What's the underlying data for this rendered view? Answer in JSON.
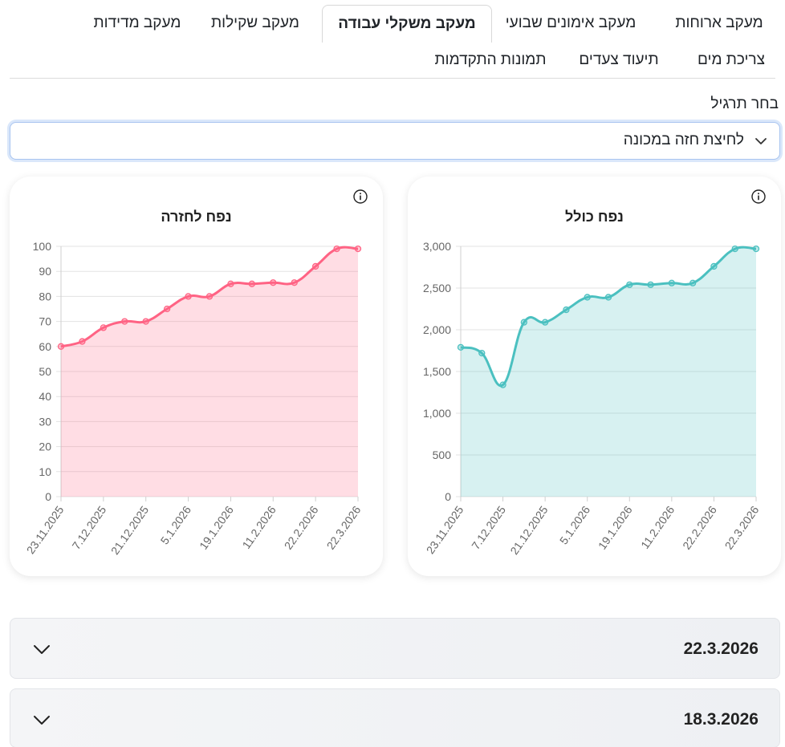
{
  "tabs": {
    "row1": [
      "מעקב ארוחות",
      "מעקב אימונים שבועי",
      "מעקב משקלי עבודה",
      "מעקב שקילות",
      "מעקב מדידות"
    ],
    "row2": [
      "צריכת מים",
      "תיעוד צעדים",
      "תמונות התקדמות"
    ],
    "active": "מעקב משקלי עבודה"
  },
  "exercise_select": {
    "label": "בחר תרגיל",
    "value": "לחיצת חזה במכונה"
  },
  "accordion": [
    "22.3.2026",
    "18.3.2026"
  ],
  "colors": {
    "teal": "#4bc0c0",
    "pink": "#ff6384",
    "accent_border": "#a8c4f0"
  },
  "chart_data": [
    {
      "type": "area",
      "title": "נפח כולל",
      "x": [
        "23.11.2025",
        "30.11.2025",
        "7.12.2025",
        "14.12.2025",
        "21.12.2025",
        "28.12.2025",
        "5.1.2026",
        "12.1.2026",
        "19.1.2026",
        "4.2.2026",
        "11.2.2026",
        "18.2.2026",
        "22.2.2026",
        "15.3.2026",
        "22.3.2026"
      ],
      "x_tick_labels": [
        "23.11.2025",
        "7.12.2025",
        "21.12.2025",
        "5.1.2026",
        "19.1.2026",
        "11.2.2026",
        "22.2.2026",
        "22.3.2026"
      ],
      "values": [
        1790,
        1720,
        1340,
        2090,
        2090,
        2240,
        2390,
        2390,
        2540,
        2540,
        2560,
        2560,
        2760,
        2970,
        2970
      ],
      "ylim": [
        0,
        3000
      ],
      "yticks": [
        "0",
        "500",
        "1,000",
        "1,500",
        "2,000",
        "2,500",
        "3,000"
      ],
      "grid": true,
      "color": "#4bc0c0"
    },
    {
      "type": "area",
      "title": "נפח לחזרה",
      "x": [
        "23.11.2025",
        "30.11.2025",
        "7.12.2025",
        "14.12.2025",
        "21.12.2025",
        "28.12.2025",
        "5.1.2026",
        "12.1.2026",
        "19.1.2026",
        "4.2.2026",
        "11.2.2026",
        "18.2.2026",
        "22.2.2026",
        "15.3.2026",
        "22.3.2026"
      ],
      "x_tick_labels": [
        "23.11.2025",
        "7.12.2025",
        "21.12.2025",
        "5.1.2026",
        "19.1.2026",
        "11.2.2026",
        "22.2.2026",
        "22.3.2026"
      ],
      "values": [
        60,
        62,
        67.5,
        70,
        70,
        75,
        80,
        80,
        85,
        85,
        85.5,
        85.5,
        92,
        99,
        99
      ],
      "ylim": [
        0,
        100
      ],
      "yticks": [
        "0",
        "10",
        "20",
        "30",
        "40",
        "50",
        "60",
        "70",
        "80",
        "90",
        "100"
      ],
      "grid": true,
      "color": "#ff6384"
    }
  ]
}
